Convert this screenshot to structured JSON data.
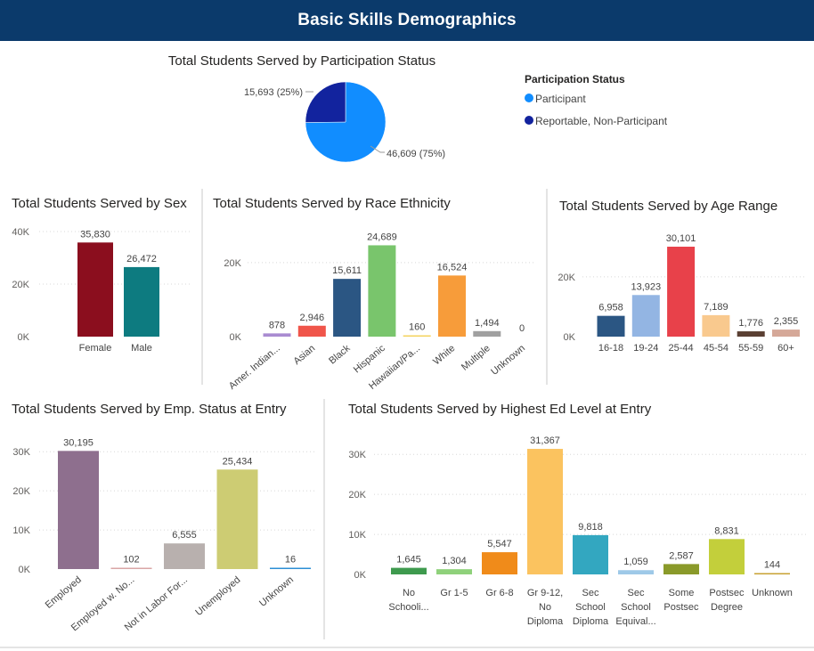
{
  "header": {
    "title": "Basic Skills Demographics"
  },
  "chart_data": [
    {
      "id": "participation",
      "type": "pie",
      "title": "Total Students Served by Participation Status",
      "legend_title": "Participation Status",
      "legend_position": "right",
      "slices": [
        {
          "label": "Participant",
          "value": 46609,
          "display": "46,609 (75%)",
          "color": "#118dff"
        },
        {
          "label": "Reportable, Non-Participant",
          "value": 15693,
          "display": "15,693 (25%)",
          "color": "#12239e"
        }
      ]
    },
    {
      "id": "sex",
      "type": "bar",
      "title": "Total Students Served by Sex",
      "categories": [
        "Female",
        "Male"
      ],
      "values": [
        35830,
        26472
      ],
      "labels": [
        "35,830",
        "26,472"
      ],
      "colors": [
        "#8b0e1e",
        "#0d7b80"
      ],
      "ylim": [
        0,
        40000
      ],
      "yticks": [
        0,
        20000,
        40000
      ],
      "ytick_labels": [
        "0K",
        "20K",
        "40K"
      ],
      "grid": true
    },
    {
      "id": "race",
      "type": "bar",
      "title": "Total Students Served by Race Ethnicity",
      "categories": [
        "Amer. Indian...",
        "Asian",
        "Black",
        "Hispanic",
        "Hawaiian/Pa...",
        "White",
        "Multiple",
        "Unknown"
      ],
      "values": [
        878,
        2946,
        15611,
        24689,
        160,
        16524,
        1494,
        0
      ],
      "labels": [
        "878",
        "2,946",
        "15,611",
        "24,689",
        "160",
        "16,524",
        "1,494",
        "0"
      ],
      "colors": [
        "#a98bd1",
        "#f0554a",
        "#2b5683",
        "#79c56c",
        "#f4d35e",
        "#f79c3a",
        "#a0a0a0",
        "#a0a0a0"
      ],
      "ylim": [
        0,
        26000
      ],
      "yticks": [
        0,
        20000
      ],
      "ytick_labels": [
        "0K",
        "20K"
      ],
      "grid": true
    },
    {
      "id": "age",
      "type": "bar",
      "title": "Total Students Served by Age Range",
      "categories": [
        "16-18",
        "19-24",
        "25-44",
        "45-54",
        "55-59",
        "60+"
      ],
      "values": [
        6958,
        13923,
        30101,
        7189,
        1776,
        2355
      ],
      "labels": [
        "6,958",
        "13,923",
        "30,101",
        "7,189",
        "1,776",
        "2,355"
      ],
      "colors": [
        "#2b5683",
        "#93b5e3",
        "#e8414a",
        "#f9c98e",
        "#5b4033",
        "#d5a898"
      ],
      "ylim": [
        0,
        31000
      ],
      "yticks": [
        0,
        20000
      ],
      "ytick_labels": [
        "0K",
        "20K"
      ],
      "grid": true
    },
    {
      "id": "emp",
      "type": "bar",
      "title": "Total Students Served by Emp. Status at Entry",
      "categories": [
        "Employed",
        "Employed w. No...",
        "Not in Labor For...",
        "Unemployed",
        "Unknown"
      ],
      "values": [
        30195,
        102,
        6555,
        25434,
        16
      ],
      "labels": [
        "30,195",
        "102",
        "6,555",
        "25,434",
        "16"
      ],
      "colors": [
        "#8e6f8e",
        "#d9a6a6",
        "#b8b0ae",
        "#cdcc73",
        "#2d8fd5"
      ],
      "ylim": [
        0,
        30500
      ],
      "yticks": [
        0,
        10000,
        20000,
        30000
      ],
      "ytick_labels": [
        "0K",
        "10K",
        "20K",
        "30K"
      ],
      "grid": true
    },
    {
      "id": "ed",
      "type": "bar",
      "title": "Total Students Served by Highest Ed Level at Entry",
      "categories": [
        [
          "No",
          "Schooli..."
        ],
        [
          "Gr 1-5"
        ],
        [
          "Gr 6-8"
        ],
        [
          "Gr 9-12,",
          "No",
          "Diploma"
        ],
        [
          "Sec",
          "School",
          "Diploma"
        ],
        [
          "Sec",
          "School",
          "Equival..."
        ],
        [
          "Some",
          "Postsec"
        ],
        [
          "Postsec",
          "Degree"
        ],
        [
          "Unknown"
        ]
      ],
      "values": [
        1645,
        1304,
        5547,
        31367,
        9818,
        1059,
        2587,
        8831,
        144
      ],
      "labels": [
        "1,645",
        "1,304",
        "5,547",
        "31,367",
        "9,818",
        "1,059",
        "2,587",
        "8,831",
        "144"
      ],
      "colors": [
        "#3e9a4e",
        "#8fd17b",
        "#f08b1a",
        "#fbc35f",
        "#33a7c0",
        "#9ec9e8",
        "#8a9a2a",
        "#c3cf3b",
        "#c8a233"
      ],
      "ylim": [
        0,
        31600
      ],
      "yticks": [
        0,
        10000,
        20000,
        30000
      ],
      "ytick_labels": [
        "0K",
        "10K",
        "20K",
        "30K"
      ],
      "grid": true
    }
  ]
}
